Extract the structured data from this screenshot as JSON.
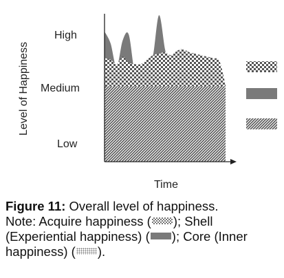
{
  "chart_data": {
    "type": "area",
    "title": "",
    "xlabel": "Time",
    "ylabel": "Level of Happiness",
    "y_tick_labels": [
      "High",
      "Medium",
      "Low"
    ],
    "ylim": [
      0,
      10
    ],
    "legend_position": "right",
    "grid": false,
    "x": [
      0,
      0.5,
      1,
      1.5,
      2,
      2.5,
      3,
      3.5,
      4,
      4.5,
      5,
      5.5,
      6,
      6.5,
      7,
      7.5,
      8,
      8.5,
      9,
      9.5,
      10
    ],
    "series": [
      {
        "pattern": "dotted",
        "color": "#777777",
        "values": [
          5.1,
          5.1,
          5.1,
          5.1,
          5.1,
          5.1,
          5.1,
          5.1,
          5.1,
          5.1,
          5.1,
          5.1,
          5.1,
          5.1,
          5.1,
          5.1,
          5.1,
          5.1,
          5.1,
          5.1,
          5.1
        ]
      },
      {
        "pattern": "solid",
        "color": "#7a7a7a",
        "values": [
          8.8,
          8.0,
          6.4,
          8.2,
          8.6,
          6.0,
          5.8,
          6.3,
          7.1,
          9.9,
          7.6,
          5.7,
          6.2,
          6.8,
          7.0,
          5.7,
          6.0,
          6.3,
          6.5,
          6.1,
          5.2
        ]
      },
      {
        "pattern": "checkered",
        "color": "#555555",
        "values": [
          7.0,
          6.9,
          6.6,
          7.1,
          6.7,
          6.6,
          6.6,
          6.9,
          7.2,
          7.3,
          7.4,
          7.2,
          7.5,
          7.6,
          7.4,
          7.3,
          7.2,
          7.1,
          7.0,
          6.8,
          5.2
        ]
      }
    ]
  },
  "caption": {
    "label": "Figure 11:",
    "title": " Overall level of happiness.",
    "note_1": "Note: Acquire happiness (",
    "note_2": "); Shell (Experiential happiness) (",
    "note_3": "); Core (Inner happiness) (",
    "note_4": ")."
  }
}
